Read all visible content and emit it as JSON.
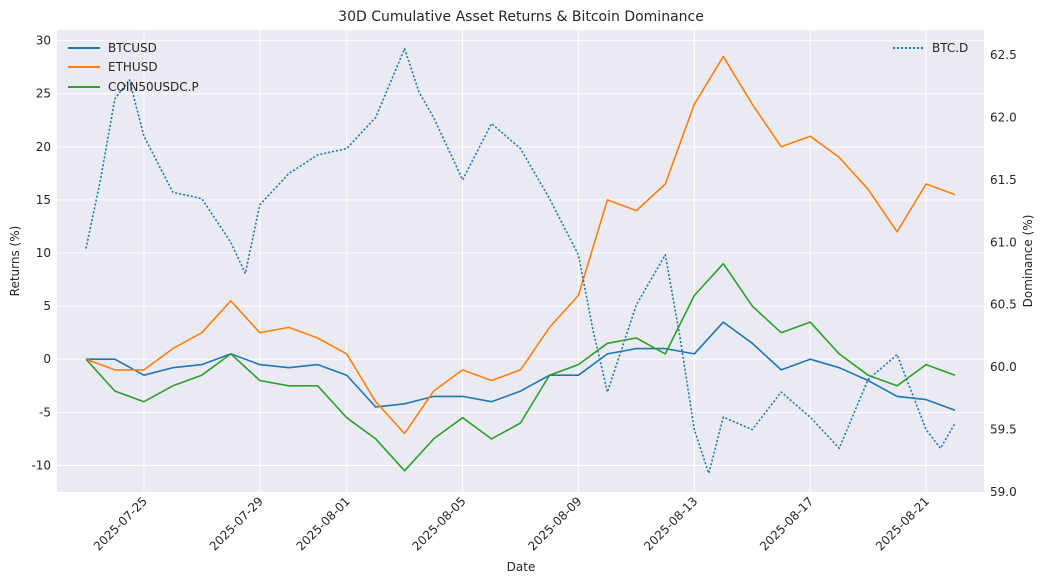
{
  "chart_data": {
    "type": "line",
    "title": "30D Cumulative Asset Returns & Bitcoin Dominance",
    "xlabel": "Date",
    "ylabel": "Returns (%)",
    "y2label": "Dominance (%)",
    "grid": true,
    "x_range": [
      "2025-07-22",
      "2025-08-23"
    ],
    "ylim": [
      -12.5,
      31
    ],
    "y2lim": [
      59.0,
      62.7
    ],
    "x_ticks": [
      "2025-07-25",
      "2025-07-29",
      "2025-08-01",
      "2025-08-05",
      "2025-08-09",
      "2025-08-13",
      "2025-08-17",
      "2025-08-21"
    ],
    "y_ticks": [
      -10,
      -5,
      0,
      5,
      10,
      15,
      20,
      25,
      30
    ],
    "y2_ticks": [
      59.0,
      59.5,
      60.0,
      60.5,
      61.0,
      61.5,
      62.0,
      62.5
    ],
    "legend_left": {
      "placement": "top-left",
      "entries": [
        "BTCUSD",
        "ETHUSD",
        "COIN50USDC.P"
      ]
    },
    "legend_right": {
      "placement": "top-right",
      "entries": [
        "BTC.D"
      ]
    },
    "series": [
      {
        "name": "BTCUSD",
        "color": "#1f77b4",
        "axis": "left",
        "style": "solid",
        "points": [
          [
            "2025-07-23",
            0
          ],
          [
            "2025-07-24",
            0
          ],
          [
            "2025-07-25",
            -1.5
          ],
          [
            "2025-07-26",
            -0.8
          ],
          [
            "2025-07-27",
            -0.5
          ],
          [
            "2025-07-28",
            0.5
          ],
          [
            "2025-07-29",
            -0.5
          ],
          [
            "2025-07-30",
            -0.8
          ],
          [
            "2025-07-31",
            -0.5
          ],
          [
            "2025-08-01",
            -1.5
          ],
          [
            "2025-08-02",
            -4.5
          ],
          [
            "2025-08-03",
            -4.2
          ],
          [
            "2025-08-04",
            -3.5
          ],
          [
            "2025-08-05",
            -3.5
          ],
          [
            "2025-08-06",
            -4
          ],
          [
            "2025-08-07",
            -3
          ],
          [
            "2025-08-08",
            -1.5
          ],
          [
            "2025-08-09",
            -1.5
          ],
          [
            "2025-08-10",
            0.5
          ],
          [
            "2025-08-11",
            1
          ],
          [
            "2025-08-12",
            1
          ],
          [
            "2025-08-13",
            0.5
          ],
          [
            "2025-08-14",
            3.5
          ],
          [
            "2025-08-15",
            1.5
          ],
          [
            "2025-08-16",
            -1
          ],
          [
            "2025-08-17",
            0
          ],
          [
            "2025-08-18",
            -0.8
          ],
          [
            "2025-08-19",
            -2
          ],
          [
            "2025-08-20",
            -3.5
          ],
          [
            "2025-08-21",
            -3.8
          ],
          [
            "2025-08-22",
            -4.8
          ]
        ]
      },
      {
        "name": "ETHUSD",
        "color": "#ff7f0e",
        "axis": "left",
        "style": "solid",
        "points": [
          [
            "2025-07-23",
            0
          ],
          [
            "2025-07-24",
            -1
          ],
          [
            "2025-07-25",
            -1
          ],
          [
            "2025-07-26",
            1
          ],
          [
            "2025-07-27",
            2.5
          ],
          [
            "2025-07-28",
            5.5
          ],
          [
            "2025-07-29",
            2.5
          ],
          [
            "2025-07-30",
            3
          ],
          [
            "2025-07-31",
            2
          ],
          [
            "2025-08-01",
            0.5
          ],
          [
            "2025-08-02",
            -4
          ],
          [
            "2025-08-03",
            -7
          ],
          [
            "2025-08-04",
            -3
          ],
          [
            "2025-08-05",
            -1
          ],
          [
            "2025-08-06",
            -2
          ],
          [
            "2025-08-07",
            -1
          ],
          [
            "2025-08-08",
            3
          ],
          [
            "2025-08-09",
            6
          ],
          [
            "2025-08-10",
            15
          ],
          [
            "2025-08-11",
            14
          ],
          [
            "2025-08-12",
            16.5
          ],
          [
            "2025-08-13",
            24
          ],
          [
            "2025-08-14",
            28.5
          ],
          [
            "2025-08-15",
            24
          ],
          [
            "2025-08-16",
            20
          ],
          [
            "2025-08-17",
            21
          ],
          [
            "2025-08-18",
            19
          ],
          [
            "2025-08-19",
            16
          ],
          [
            "2025-08-20",
            12
          ],
          [
            "2025-08-21",
            16.5
          ],
          [
            "2025-08-22",
            15.5
          ]
        ]
      },
      {
        "name": "COIN50USDC.P",
        "color": "#2ca02c",
        "axis": "left",
        "style": "solid",
        "points": [
          [
            "2025-07-23",
            0
          ],
          [
            "2025-07-24",
            -3
          ],
          [
            "2025-07-25",
            -4
          ],
          [
            "2025-07-26",
            -2.5
          ],
          [
            "2025-07-27",
            -1.5
          ],
          [
            "2025-07-28",
            0.5
          ],
          [
            "2025-07-29",
            -2
          ],
          [
            "2025-07-30",
            -2.5
          ],
          [
            "2025-07-31",
            -2.5
          ],
          [
            "2025-08-01",
            -5.5
          ],
          [
            "2025-08-02",
            -7.5
          ],
          [
            "2025-08-03",
            -10.5
          ],
          [
            "2025-08-04",
            -7.5
          ],
          [
            "2025-08-05",
            -5.5
          ],
          [
            "2025-08-06",
            -7.5
          ],
          [
            "2025-08-07",
            -6
          ],
          [
            "2025-08-08",
            -1.5
          ],
          [
            "2025-08-09",
            -0.5
          ],
          [
            "2025-08-10",
            1.5
          ],
          [
            "2025-08-11",
            2
          ],
          [
            "2025-08-12",
            0.5
          ],
          [
            "2025-08-13",
            6
          ],
          [
            "2025-08-14",
            9
          ],
          [
            "2025-08-15",
            5
          ],
          [
            "2025-08-16",
            2.5
          ],
          [
            "2025-08-17",
            3.5
          ],
          [
            "2025-08-18",
            0.5
          ],
          [
            "2025-08-19",
            -1.5
          ],
          [
            "2025-08-20",
            -2.5
          ],
          [
            "2025-08-21",
            -0.5
          ],
          [
            "2025-08-22",
            -1.5
          ]
        ]
      },
      {
        "name": "BTC.D",
        "color": "#1f77b4",
        "axis": "right",
        "style": "dotted",
        "points": [
          [
            "2025-07-23",
            60.95
          ],
          [
            "2025-07-23T12",
            61.5
          ],
          [
            "2025-07-24",
            62.15
          ],
          [
            "2025-07-24T12",
            62.3
          ],
          [
            "2025-07-25",
            61.85
          ],
          [
            "2025-07-26",
            61.4
          ],
          [
            "2025-07-27",
            61.35
          ],
          [
            "2025-07-28",
            61.0
          ],
          [
            "2025-07-28T12",
            60.75
          ],
          [
            "2025-07-29",
            61.3
          ],
          [
            "2025-07-30",
            61.55
          ],
          [
            "2025-07-31",
            61.7
          ],
          [
            "2025-08-01",
            61.75
          ],
          [
            "2025-08-02",
            62.0
          ],
          [
            "2025-08-03",
            62.55
          ],
          [
            "2025-08-03T12",
            62.2
          ],
          [
            "2025-08-04",
            62.0
          ],
          [
            "2025-08-05",
            61.5
          ],
          [
            "2025-08-06",
            61.95
          ],
          [
            "2025-08-07",
            61.75
          ],
          [
            "2025-08-08",
            61.35
          ],
          [
            "2025-08-09",
            60.9
          ],
          [
            "2025-08-09T12",
            60.3
          ],
          [
            "2025-08-10",
            59.8
          ],
          [
            "2025-08-11",
            60.5
          ],
          [
            "2025-08-12",
            60.9
          ],
          [
            "2025-08-12T12",
            60.25
          ],
          [
            "2025-08-13",
            59.5
          ],
          [
            "2025-08-13T12",
            59.15
          ],
          [
            "2025-08-14",
            59.6
          ],
          [
            "2025-08-15",
            59.5
          ],
          [
            "2025-08-16",
            59.8
          ],
          [
            "2025-08-17",
            59.6
          ],
          [
            "2025-08-18",
            59.35
          ],
          [
            "2025-08-19",
            59.9
          ],
          [
            "2025-08-20",
            60.1
          ],
          [
            "2025-08-21",
            59.5
          ],
          [
            "2025-08-21T12",
            59.35
          ],
          [
            "2025-08-22",
            59.55
          ]
        ]
      }
    ]
  }
}
